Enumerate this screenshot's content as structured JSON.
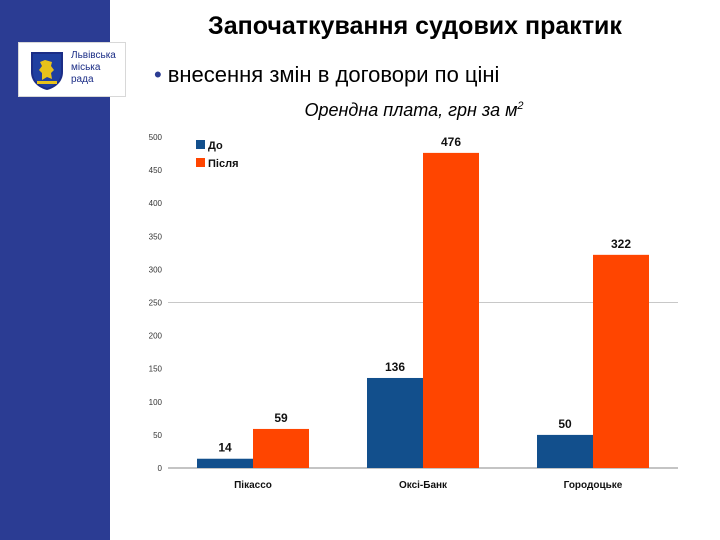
{
  "slide": {
    "title": "Започаткування судових практик",
    "bullet": "внесення змін в договори по ціні"
  },
  "logo": {
    "lines": [
      "Львівська",
      "міська",
      "рада"
    ]
  },
  "colors": {
    "sidebar": "#2b3c93",
    "before": "#124f8c",
    "after": "#ff4500"
  },
  "chart_data": {
    "type": "bar",
    "title": "Орендна плата, грн за м",
    "title_superscript": "2",
    "categories": [
      "Пікассо",
      "Оксі-Банк",
      "Городоцьке"
    ],
    "series": [
      {
        "name": "До",
        "values": [
          14,
          136,
          50
        ],
        "color": "#124f8c"
      },
      {
        "name": "Після",
        "values": [
          59,
          476,
          322
        ],
        "color": "#ff4500"
      }
    ],
    "ylim": [
      0,
      500
    ],
    "yticks": [
      0,
      50,
      100,
      150,
      200,
      250,
      300,
      350,
      400,
      450,
      500
    ],
    "reference_line": 250,
    "legend_position": "top-left",
    "xlabel": "",
    "ylabel": ""
  }
}
